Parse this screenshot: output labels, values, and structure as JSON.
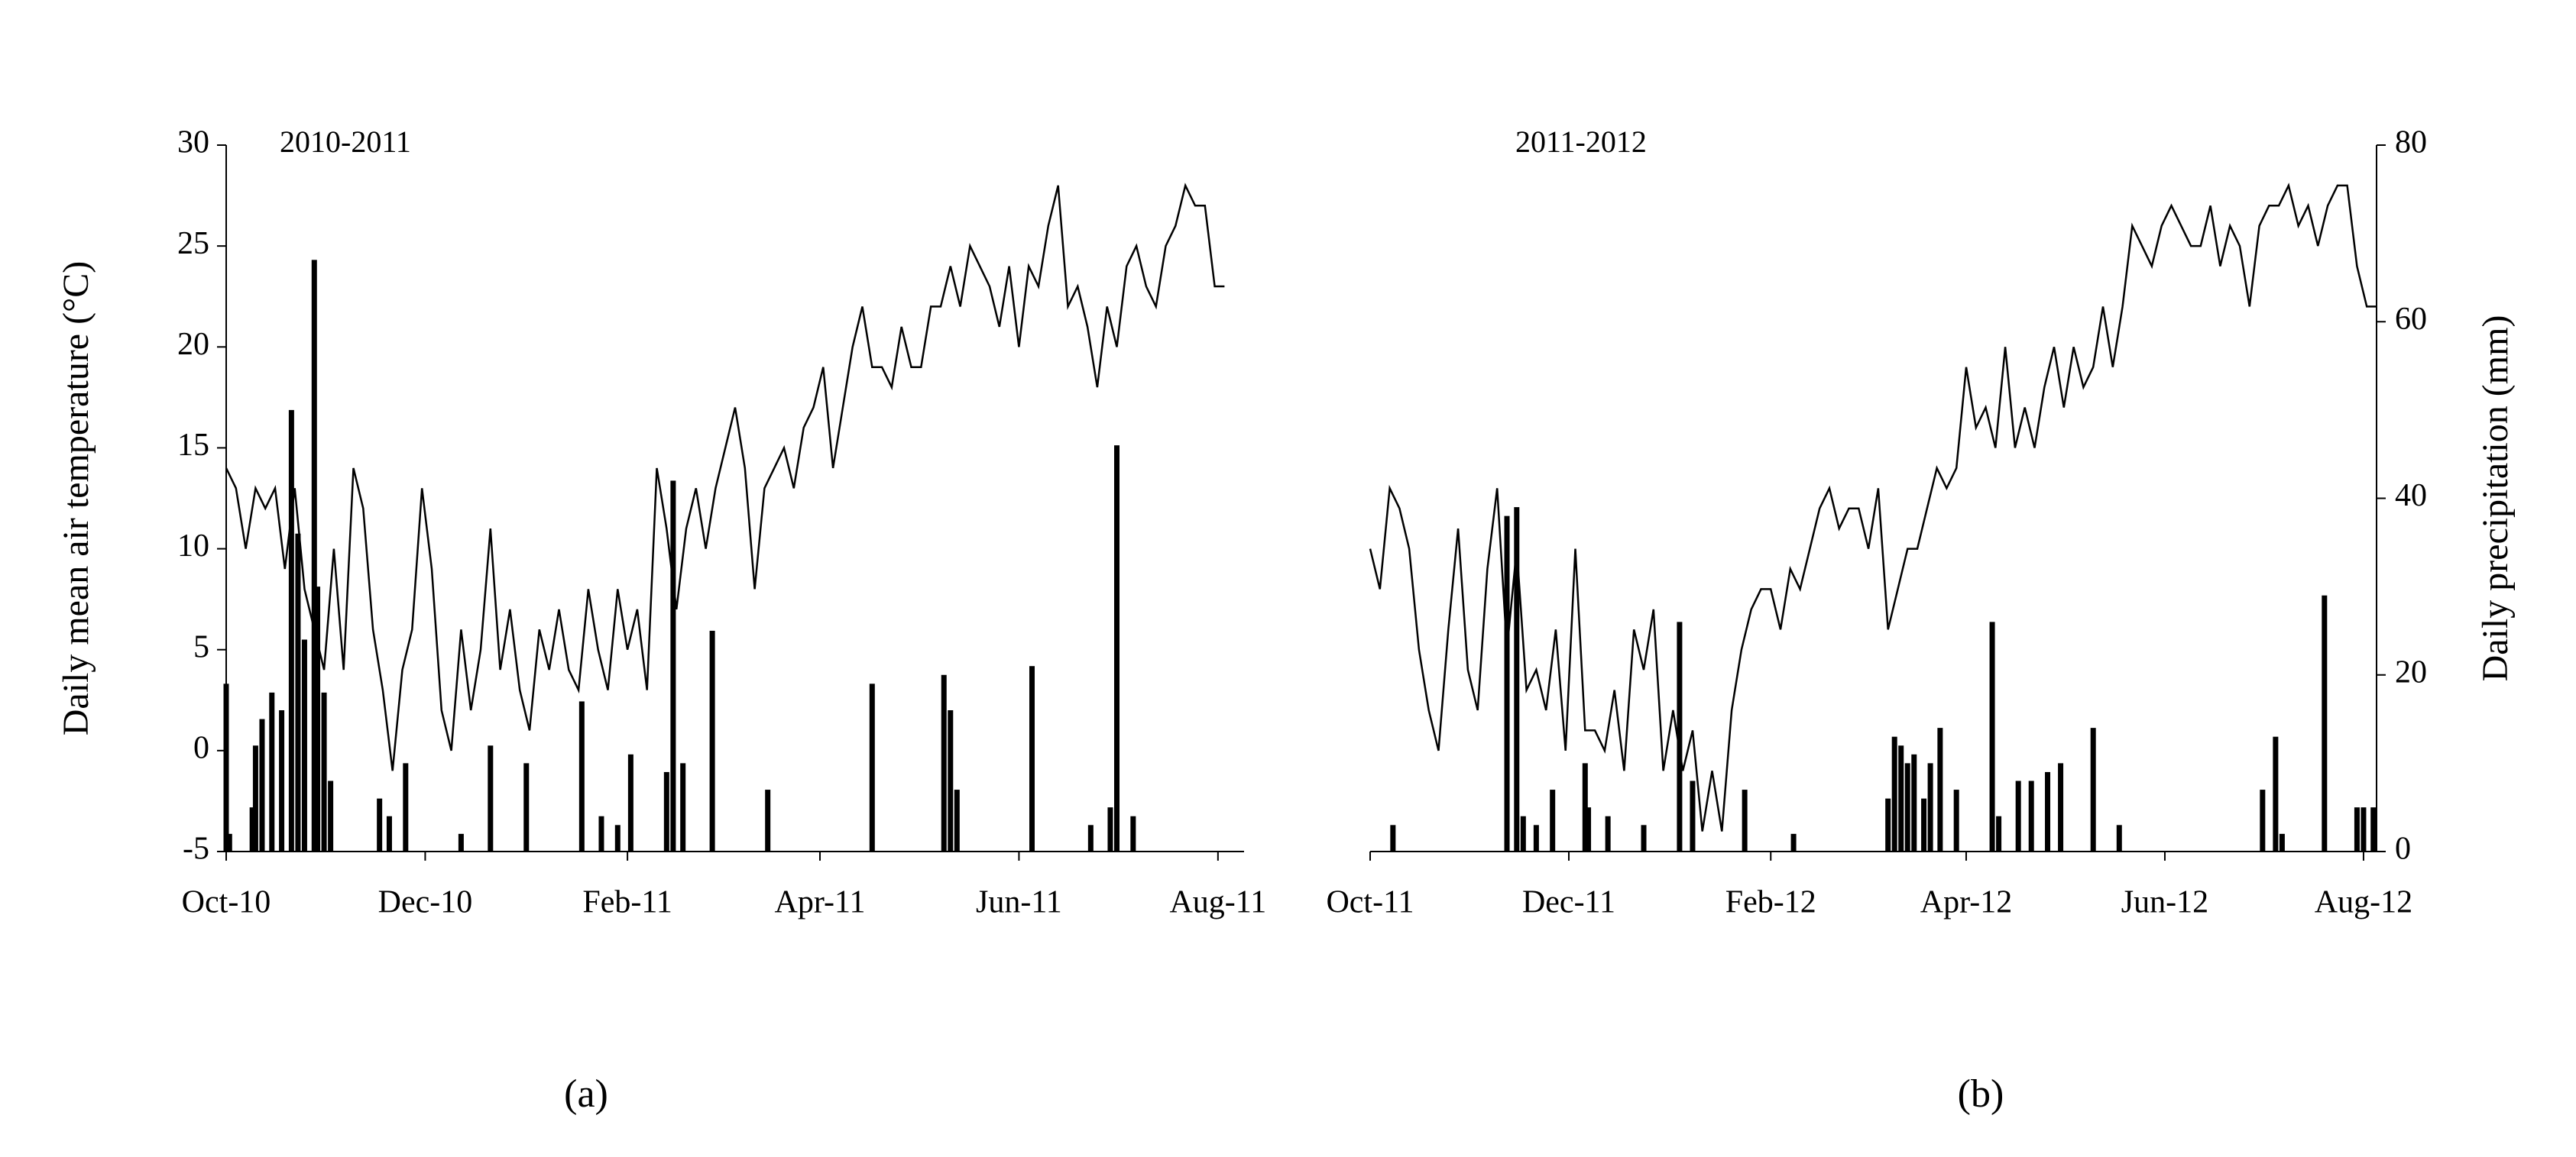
{
  "chart_data": [
    {
      "type": "combo",
      "title": "2010-2011",
      "label": "(a)",
      "ylabel": "Daily  mean air temperature (°C)",
      "xlim": [
        0,
        312
      ],
      "ylim": [
        -5,
        30
      ],
      "y2lim": [
        0,
        80
      ],
      "xticks": [
        {
          "value": 0,
          "label": "Oct-10"
        },
        {
          "value": 61,
          "label": "Dec-10"
        },
        {
          "value": 123,
          "label": "Feb-11"
        },
        {
          "value": 182,
          "label": "Apr-11"
        },
        {
          "value": 243,
          "label": "Jun-11"
        },
        {
          "value": 304,
          "label": "Aug-11"
        }
      ],
      "yticks": [
        -5,
        0,
        5,
        10,
        15,
        20,
        25,
        30
      ],
      "series": [
        {
          "type": "line",
          "color": "#000000",
          "x": [
            0,
            3,
            6,
            9,
            12,
            15,
            18,
            21,
            24,
            27,
            30,
            33,
            36,
            39,
            42,
            45,
            48,
            51,
            54,
            57,
            60,
            63,
            66,
            69,
            72,
            75,
            78,
            81,
            84,
            87,
            90,
            93,
            96,
            99,
            102,
            105,
            108,
            111,
            114,
            117,
            120,
            123,
            126,
            129,
            132,
            135,
            138,
            141,
            144,
            147,
            150,
            153,
            156,
            159,
            162,
            165,
            168,
            171,
            174,
            177,
            180,
            183,
            186,
            189,
            192,
            195,
            198,
            201,
            204,
            207,
            210,
            213,
            216,
            219,
            222,
            225,
            228,
            231,
            234,
            237,
            240,
            243,
            246,
            249,
            252,
            255,
            258,
            261,
            264,
            267,
            270,
            273,
            276,
            279,
            282,
            285,
            288,
            291,
            294,
            297,
            300,
            303,
            306
          ],
          "values": [
            14,
            13,
            10,
            13,
            12,
            13,
            9,
            13,
            8,
            6,
            4,
            10,
            4,
            14,
            12,
            6,
            3,
            -1,
            4,
            6,
            13,
            9,
            2,
            0,
            6,
            2,
            5,
            11,
            4,
            7,
            3,
            1,
            6,
            4,
            7,
            4,
            3,
            8,
            5,
            3,
            8,
            5,
            7,
            3,
            14,
            11,
            7,
            11,
            13,
            10,
            13,
            15,
            17,
            14,
            8,
            13,
            14,
            15,
            13,
            16,
            17,
            19,
            14,
            17,
            20,
            22,
            19,
            19,
            18,
            21,
            19,
            19,
            22,
            22,
            24,
            22,
            25,
            24,
            23,
            21,
            24,
            20,
            24,
            23,
            26,
            28,
            22,
            23,
            21,
            18,
            22,
            20,
            24,
            25,
            23,
            22,
            25,
            26,
            28,
            27,
            27,
            23,
            23
          ]
        },
        {
          "type": "bar",
          "axis": "y2",
          "color": "#000000",
          "x": [
            0,
            1,
            8,
            9,
            11,
            14,
            17,
            20,
            22,
            24,
            27,
            28,
            30,
            32,
            47,
            50,
            55,
            72,
            81,
            92,
            109,
            115,
            120,
            124,
            135,
            137,
            140,
            149,
            166,
            198,
            220,
            222,
            224,
            247,
            265,
            271,
            273,
            278
          ],
          "values": [
            19,
            2,
            5,
            12,
            15,
            18,
            16,
            50,
            36,
            24,
            67,
            30,
            18,
            8,
            6,
            4,
            10,
            2,
            12,
            10,
            17,
            4,
            3,
            11,
            9,
            42,
            10,
            25,
            7,
            19,
            20,
            16,
            7,
            21,
            3,
            5,
            46,
            4
          ]
        }
      ]
    },
    {
      "type": "combo",
      "title": "2011-2012",
      "label": "(b)",
      "y2label": "Daily precipitation (mm)",
      "xlim": [
        0,
        309
      ],
      "ylim": [
        -5,
        30
      ],
      "y2lim": [
        0,
        80
      ],
      "xticks": [
        {
          "value": 0,
          "label": "Oct-11"
        },
        {
          "value": 61,
          "label": "Dec-11"
        },
        {
          "value": 123,
          "label": "Feb-12"
        },
        {
          "value": 183,
          "label": "Apr-12"
        },
        {
          "value": 244,
          "label": "Jun-12"
        },
        {
          "value": 305,
          "label": "Aug-12"
        }
      ],
      "y2ticks": [
        0,
        20,
        40,
        60,
        80
      ],
      "series": [
        {
          "type": "line",
          "color": "#000000",
          "x": [
            0,
            3,
            6,
            9,
            12,
            15,
            18,
            21,
            24,
            27,
            30,
            33,
            36,
            39,
            42,
            45,
            48,
            51,
            54,
            57,
            60,
            63,
            66,
            69,
            72,
            75,
            78,
            81,
            84,
            87,
            90,
            93,
            96,
            99,
            102,
            105,
            108,
            111,
            114,
            117,
            120,
            123,
            126,
            129,
            132,
            135,
            138,
            141,
            144,
            147,
            150,
            153,
            156,
            159,
            162,
            165,
            168,
            171,
            174,
            177,
            180,
            183,
            186,
            189,
            192,
            195,
            198,
            201,
            204,
            207,
            210,
            213,
            216,
            219,
            222,
            225,
            228,
            231,
            234,
            237,
            240,
            243,
            246,
            249,
            252,
            255,
            258,
            261,
            264,
            267,
            270,
            273,
            276,
            279,
            282,
            285,
            288,
            291,
            294,
            297,
            300,
            303,
            306,
            309
          ],
          "values": [
            10,
            8,
            13,
            12,
            10,
            5,
            2,
            0,
            6,
            11,
            4,
            2,
            9,
            13,
            5,
            10,
            3,
            4,
            2,
            6,
            0,
            10,
            1,
            1,
            0,
            3,
            -1,
            6,
            4,
            7,
            -1,
            2,
            -1,
            1,
            -4,
            -1,
            -4,
            2,
            5,
            7,
            8,
            8,
            6,
            9,
            8,
            10,
            12,
            13,
            11,
            12,
            12,
            10,
            13,
            6,
            8,
            10,
            10,
            12,
            14,
            13,
            14,
            19,
            16,
            17,
            15,
            20,
            15,
            17,
            15,
            18,
            20,
            17,
            20,
            18,
            19,
            22,
            19,
            22,
            26,
            25,
            24,
            26,
            27,
            26,
            25,
            25,
            27,
            24,
            26,
            25,
            22,
            26,
            27,
            27,
            28,
            26,
            27,
            25,
            27,
            28,
            28,
            24,
            22,
            22
          ]
        },
        {
          "type": "bar",
          "axis": "y2",
          "color": "#000000",
          "x": [
            7,
            42,
            45,
            47,
            51,
            56,
            66,
            67,
            73,
            84,
            95,
            99,
            115,
            130,
            159,
            161,
            163,
            165,
            167,
            170,
            172,
            175,
            180,
            191,
            193,
            199,
            203,
            208,
            212,
            222,
            230,
            274,
            278,
            280,
            293,
            303,
            305,
            308
          ],
          "values": [
            3,
            38,
            39,
            4,
            3,
            7,
            10,
            5,
            4,
            3,
            26,
            8,
            7,
            2,
            6,
            13,
            12,
            10,
            11,
            6,
            10,
            14,
            7,
            26,
            4,
            8,
            8,
            9,
            10,
            14,
            3,
            7,
            13,
            2,
            29,
            5,
            5,
            5
          ]
        }
      ]
    }
  ]
}
